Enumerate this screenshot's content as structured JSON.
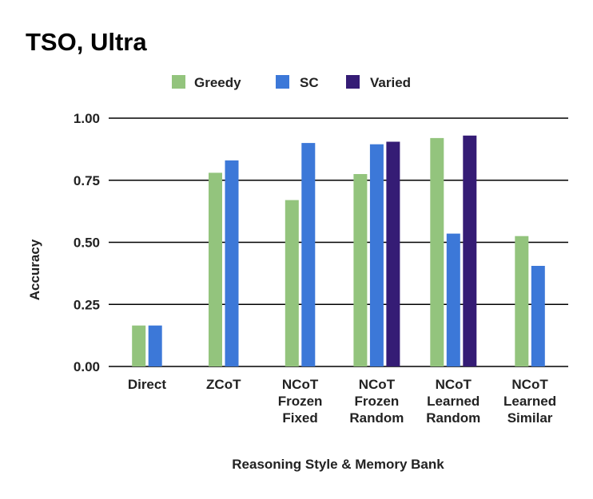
{
  "chart_data": {
    "type": "bar",
    "title": "TSO, Ultra",
    "xlabel": "Reasoning Style & Memory Bank",
    "ylabel": "Accuracy",
    "ylim": [
      0,
      1
    ],
    "yticks": [
      "0.00",
      "0.25",
      "0.50",
      "0.75",
      "1.00"
    ],
    "ytick_values": [
      0,
      0.25,
      0.5,
      0.75,
      1.0
    ],
    "grid": true,
    "legend_position": "top-center",
    "categories": [
      [
        "Direct"
      ],
      [
        "ZCoT"
      ],
      [
        "NCoT",
        "Frozen",
        "Fixed"
      ],
      [
        "NCoT",
        "Frozen",
        "Random"
      ],
      [
        "NCoT",
        "Learned",
        "Random"
      ],
      [
        "NCoT",
        "Learned",
        "Similar"
      ]
    ],
    "series": [
      {
        "name": "Greedy",
        "color": "#93c47d",
        "values": [
          0.165,
          0.78,
          0.67,
          0.775,
          0.92,
          0.525
        ]
      },
      {
        "name": "SC",
        "color": "#3c78d8",
        "values": [
          0.165,
          0.83,
          0.9,
          0.895,
          0.535,
          0.405
        ]
      },
      {
        "name": "Varied",
        "color": "#351c75",
        "values": [
          null,
          null,
          null,
          0.905,
          0.93,
          null
        ]
      }
    ]
  }
}
